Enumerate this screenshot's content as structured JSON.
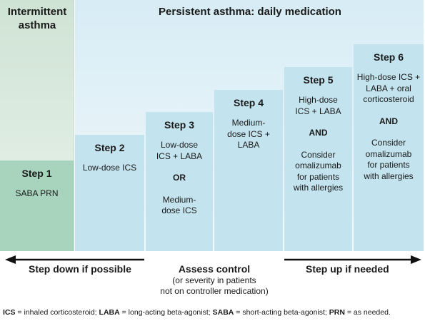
{
  "headers": {
    "intermittent": "Intermittent asthma",
    "persistent": "Persistent asthma: daily medication"
  },
  "steps": [
    {
      "title": "Step 1",
      "lines": [
        "SABA PRN"
      ]
    },
    {
      "title": "Step 2",
      "lines": [
        "Low-dose ICS"
      ]
    },
    {
      "title": "Step 3",
      "lines": [
        "Low-dose ICS + LABA",
        "OR",
        "Medium-dose ICS"
      ]
    },
    {
      "title": "Step 4",
      "lines": [
        "Medium-dose ICS + LABA"
      ]
    },
    {
      "title": "Step 5",
      "lines": [
        "High-dose ICS + LABA",
        "AND",
        "Consider omalizumab for patients with allergies"
      ]
    },
    {
      "title": "Step 6",
      "lines": [
        "High-dose ICS + LABA + oral corticosteroid",
        "AND",
        "Consider omalizumab for patients with allergies"
      ]
    }
  ],
  "bottom": {
    "step_down": "Step down if possible",
    "assess": "Assess control",
    "assess_sub1": "(or severity in patients",
    "assess_sub2": "not on controller medication)",
    "step_up": "Step up if needed"
  },
  "footnote": {
    "ics_abbr": "ICS",
    "ics_def": " = inhaled corticosteroid; ",
    "laba_abbr": "LABA",
    "laba_def": " = long-acting beta-agonist; ",
    "saba_abbr": "SABA",
    "saba_def": " = short-acting beta-agonist; ",
    "prn_abbr": "PRN",
    "prn_def": " = as needed."
  },
  "colors": {
    "step1": "#a8d4bd",
    "steps": "#c3e3ee",
    "intermittent_bg": "#cfe3d4",
    "persistent_bg": "#d7ecf5"
  }
}
